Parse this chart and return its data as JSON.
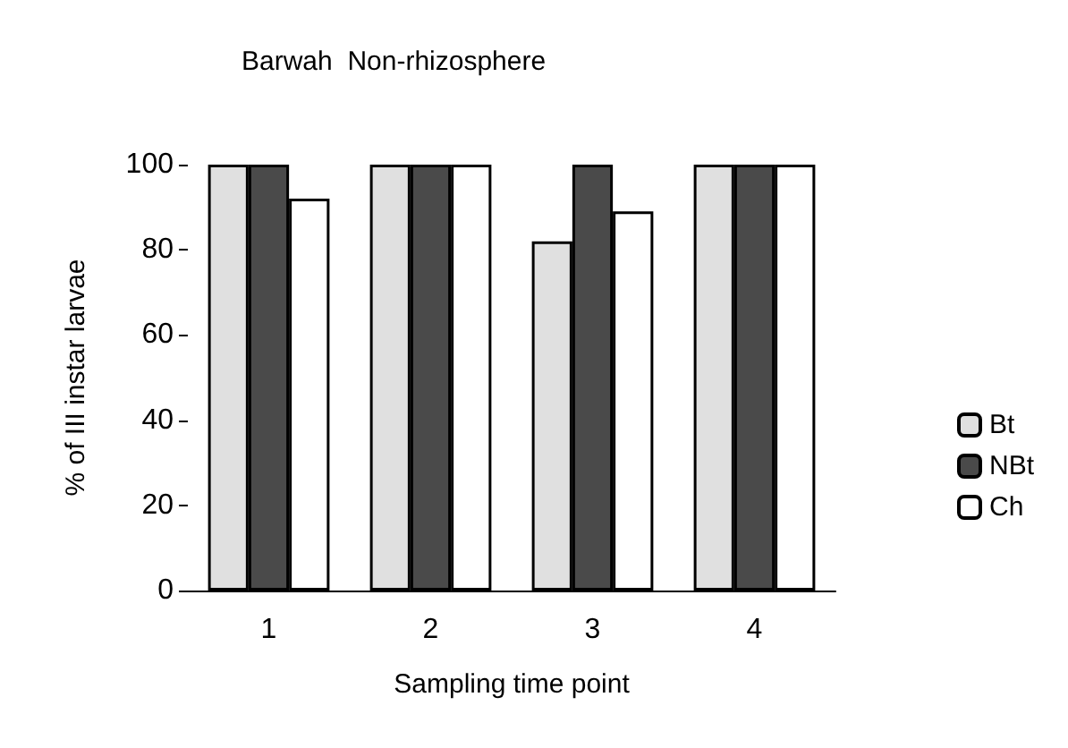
{
  "chart_data": {
    "type": "bar",
    "title": "Barwah  Non-rhizosphere",
    "xlabel": "Sampling time point",
    "ylabel": "% of III instar larvae",
    "categories": [
      "1",
      "2",
      "3",
      "4"
    ],
    "series": [
      {
        "name": "Bt",
        "color": "#e0e0e0",
        "values": [
          100,
          100,
          82,
          100
        ]
      },
      {
        "name": "NBt",
        "color": "#4a4a4a",
        "values": [
          100,
          100,
          100,
          100
        ]
      },
      {
        "name": "Ch",
        "color": "#ffffff",
        "values": [
          92,
          100,
          89,
          100
        ]
      }
    ],
    "ylim": [
      0,
      100
    ],
    "yticks": [
      0,
      20,
      40,
      60,
      80,
      100
    ],
    "grid": false,
    "legend": "right"
  }
}
